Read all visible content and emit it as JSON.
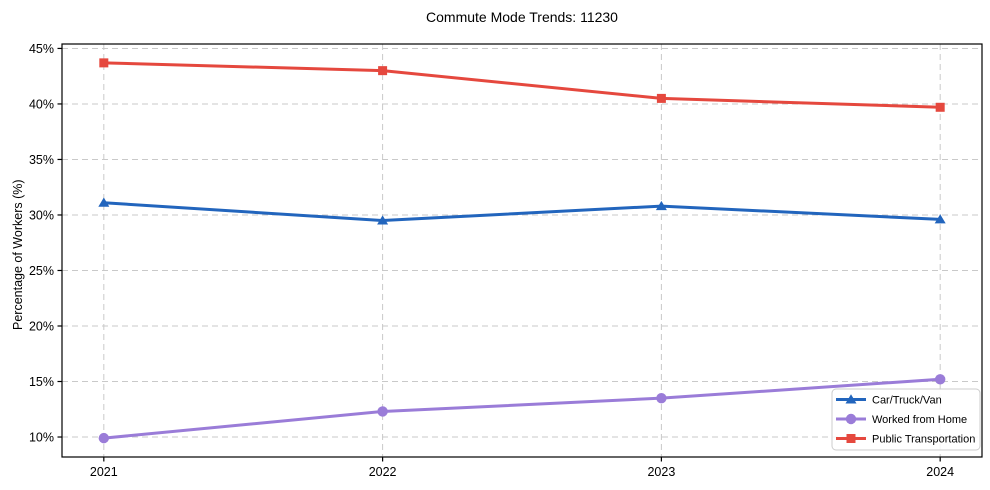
{
  "title": "Commute Mode Trends: 11230",
  "chart_data": {
    "type": "line",
    "title": "Commute Mode Trends: 11230",
    "xlabel": "",
    "ylabel": "Percentage of Workers (%)",
    "x": [
      2021,
      2022,
      2023,
      2024
    ],
    "x_tick_labels": [
      "2021",
      "2022",
      "2023",
      "2024"
    ],
    "series": [
      {
        "name": "Car/Truck/Van",
        "color": "#2265bd",
        "marker": "triangle-up",
        "values": [
          31.1,
          29.5,
          30.8,
          29.6
        ]
      },
      {
        "name": "Worked from Home",
        "color": "#9a7cd8",
        "marker": "circle",
        "values": [
          9.9,
          12.3,
          13.5,
          15.2
        ]
      },
      {
        "name": "Public Transportation",
        "color": "#e5483e",
        "marker": "square",
        "values": [
          43.7,
          43.0,
          40.5,
          39.7
        ]
      }
    ],
    "y_ticks": [
      10,
      15,
      20,
      25,
      30,
      35,
      40,
      45
    ],
    "y_tick_suffix": "%",
    "ylim": [
      8.2,
      45.4
    ],
    "xlim": [
      2020.85,
      2024.15
    ],
    "grid": true,
    "grid_color": "#c9c9c9",
    "frame_color": "#000000",
    "background_color": "#ffffff",
    "legend_position": "lower right"
  }
}
